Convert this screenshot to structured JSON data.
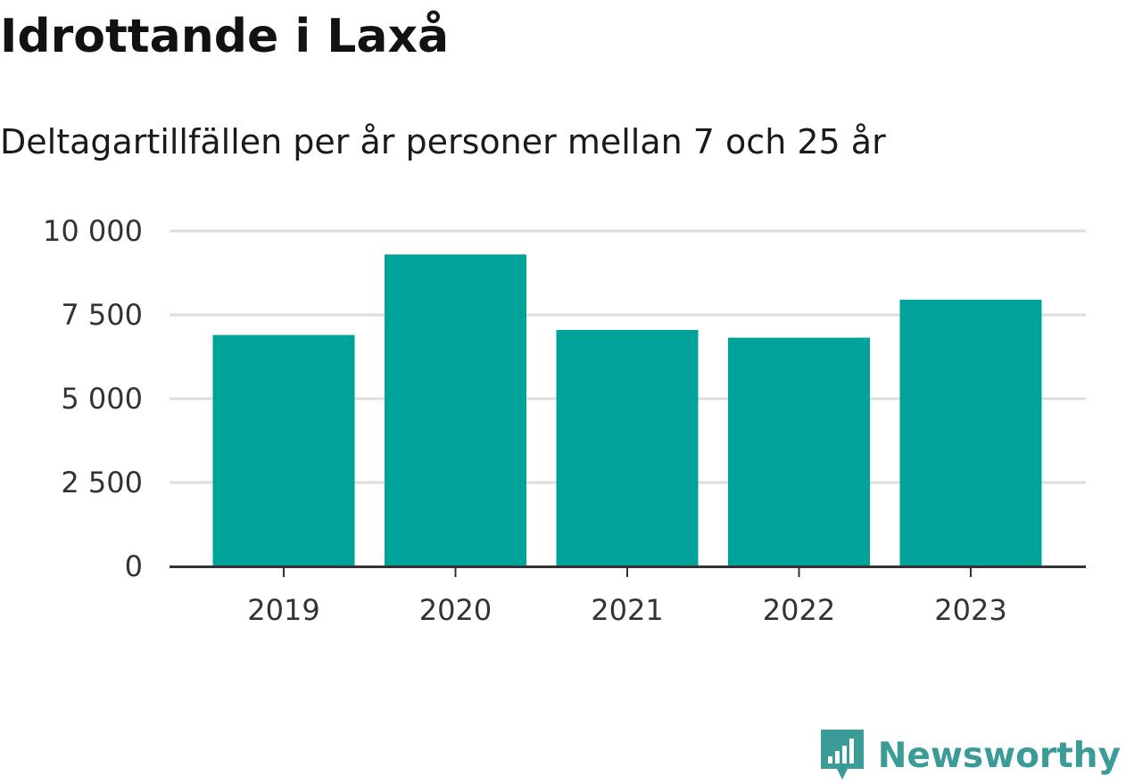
{
  "header": {
    "title": "Idrottande i Laxå",
    "subtitle": "Deltagartillfällen per år personer mellan 7 och 25 år"
  },
  "brand": {
    "name": "Newsworthy",
    "color": "#3b9b97",
    "icon": "bar-chart-speech-bubble-icon"
  },
  "colors": {
    "bar": "#00a39a",
    "grid": "#dddddd",
    "axis": "#333333",
    "tick_text": "#333333"
  },
  "chart_data": {
    "type": "bar",
    "categories": [
      "2019",
      "2020",
      "2021",
      "2022",
      "2023"
    ],
    "values": [
      6900,
      9300,
      7050,
      6820,
      7950
    ],
    "ylim": [
      0,
      10000
    ],
    "yticks": [
      0,
      2500,
      5000,
      7500,
      10000
    ],
    "ytick_labels": [
      "0",
      "2 500",
      "5 000",
      "7 500",
      "10 000"
    ],
    "xlabel": "",
    "ylabel": "",
    "grid": true,
    "legend": false
  }
}
